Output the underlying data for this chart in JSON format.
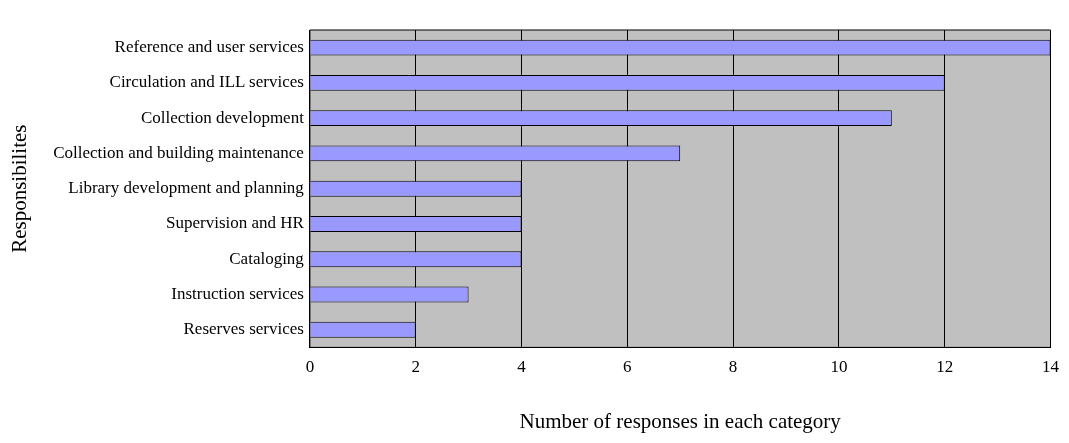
{
  "chart_data": {
    "type": "bar",
    "orientation": "horizontal",
    "categories": [
      "Reference and user services",
      "Circulation and ILL services",
      "Collection development",
      "Collection and building maintenance",
      "Library development and planning",
      "Supervision and HR",
      "Cataloging",
      "Instruction services",
      "Reserves services"
    ],
    "values": [
      14,
      12,
      11,
      7,
      4,
      4,
      4,
      3,
      2
    ],
    "color": "#9999ff",
    "xlim": [
      0,
      14
    ],
    "xticks": [
      0,
      2,
      4,
      6,
      8,
      10,
      12,
      14
    ],
    "xlabel": "Number of responses in each category",
    "ylabel": "Responsibilites",
    "grid": "x",
    "legend": false
  }
}
